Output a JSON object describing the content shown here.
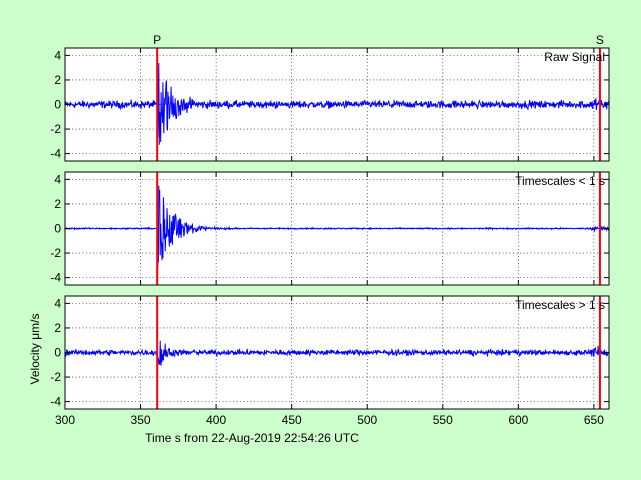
{
  "chart_data": {
    "type": "line",
    "xlabel": "Time s from 22-Aug-2019 22:54:26 UTC",
    "ylabel": "Velocity μm/s",
    "xlim": [
      300,
      660
    ],
    "xticks": [
      300,
      350,
      400,
      450,
      500,
      550,
      600,
      650
    ],
    "ylim": [
      -4.6,
      4.6
    ],
    "yticks": [
      -4,
      -2,
      0,
      2,
      4
    ],
    "grid": true,
    "colors": {
      "background": "#ccffcc",
      "plot_bg": "#ffffff",
      "signal": "#0000ff",
      "marker": "#ff0000"
    },
    "markers": [
      {
        "label": "P",
        "x": 361
      },
      {
        "label": "S",
        "x": 654
      }
    ],
    "panels": [
      {
        "name": "Raw Signal",
        "label": "Raw Signal",
        "noise": 0.45,
        "event_amp": 4.5,
        "event_decay": 9,
        "late_amp": 0.5
      },
      {
        "name": "Timescales < 1 s",
        "label": "Timescales < 1 s",
        "noise": 0.08,
        "event_amp": 4.0,
        "event_decay": 10,
        "late_amp": 0.2
      },
      {
        "name": "Timescales > 1 s",
        "label": "Timescales > 1 s",
        "noise": 0.33,
        "event_amp": 1.8,
        "event_decay": 5,
        "late_amp": 0.4
      }
    ]
  }
}
